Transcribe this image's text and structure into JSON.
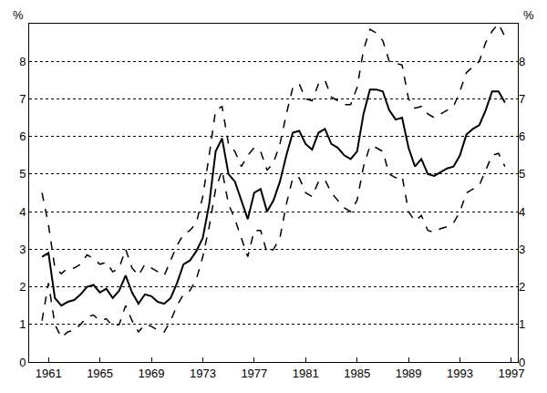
{
  "chart_data": {
    "type": "line",
    "ylabel": "%",
    "y2label": "%",
    "x": [
      1960.5,
      1961,
      1961.5,
      1962,
      1962.5,
      1963,
      1963.5,
      1964,
      1964.5,
      1965,
      1965.5,
      1966,
      1966.5,
      1967,
      1967.5,
      1968,
      1968.5,
      1969,
      1969.5,
      1970,
      1970.5,
      1971,
      1971.5,
      1972,
      1972.5,
      1973,
      1973.5,
      1974,
      1974.5,
      1975,
      1975.5,
      1976,
      1976.5,
      1977,
      1977.5,
      1978,
      1978.5,
      1979,
      1979.5,
      1980,
      1980.5,
      1981,
      1981.5,
      1982,
      1982.5,
      1983,
      1983.5,
      1984,
      1984.5,
      1985,
      1985.5,
      1986,
      1986.5,
      1987,
      1987.5,
      1988,
      1988.5,
      1989,
      1989.5,
      1990,
      1990.5,
      1991,
      1991.5,
      1992,
      1992.5,
      1993,
      1993.5,
      1994,
      1994.5,
      1995,
      1995.5,
      1996,
      1996.5
    ],
    "series": [
      {
        "color": "#000000",
        "line_style": "dash",
        "values": [
          4.5,
          3.65,
          2.5,
          2.35,
          2.5,
          2.5,
          2.6,
          2.85,
          2.75,
          2.6,
          2.65,
          2.4,
          2.5,
          3.0,
          2.5,
          2.3,
          2.6,
          2.5,
          2.4,
          2.3,
          2.7,
          3.1,
          3.4,
          3.5,
          3.7,
          4.4,
          5.5,
          6.7,
          6.8,
          5.8,
          5.6,
          5.2,
          5.5,
          5.7,
          5.6,
          5.1,
          5.3,
          5.8,
          6.6,
          7.3,
          7.4,
          7.0,
          6.95,
          7.4,
          7.5,
          7.05,
          6.95,
          6.85,
          6.85,
          7.3,
          8.3,
          8.85,
          8.75,
          8.55,
          8.0,
          7.95,
          7.9,
          7.0,
          6.75,
          6.8,
          6.6,
          6.5,
          6.6,
          6.7,
          6.8,
          7.2,
          7.7,
          7.85,
          8.0,
          8.5,
          8.8,
          9.0,
          8.65
        ]
      },
      {
        "color": "#000000",
        "line_style": "solid",
        "values": [
          2.8,
          2.9,
          1.7,
          1.5,
          1.6,
          1.65,
          1.8,
          2.0,
          2.05,
          1.85,
          1.95,
          1.7,
          1.9,
          2.3,
          1.85,
          1.55,
          1.8,
          1.75,
          1.6,
          1.55,
          1.7,
          2.1,
          2.6,
          2.7,
          2.95,
          3.3,
          4.2,
          5.6,
          5.95,
          5.0,
          4.8,
          4.3,
          3.8,
          4.5,
          4.6,
          4.0,
          4.3,
          4.8,
          5.5,
          6.1,
          6.15,
          5.8,
          5.65,
          6.1,
          6.2,
          5.8,
          5.7,
          5.5,
          5.4,
          5.6,
          6.6,
          7.25,
          7.25,
          7.2,
          6.7,
          6.45,
          6.5,
          5.7,
          5.2,
          5.4,
          5.0,
          4.95,
          5.05,
          5.15,
          5.2,
          5.5,
          6.05,
          6.2,
          6.3,
          6.7,
          7.2,
          7.2,
          6.9
        ]
      },
      {
        "color": "#000000",
        "line_style": "dash",
        "values": [
          1.1,
          2.1,
          1.0,
          0.65,
          0.8,
          0.85,
          1.0,
          1.2,
          1.25,
          1.1,
          1.15,
          0.95,
          1.0,
          1.5,
          1.1,
          0.8,
          1.0,
          0.95,
          0.85,
          0.8,
          1.1,
          1.5,
          1.8,
          1.9,
          2.2,
          2.8,
          3.6,
          4.6,
          5.1,
          4.2,
          3.8,
          3.3,
          2.8,
          3.5,
          3.5,
          2.9,
          3.0,
          3.3,
          4.2,
          4.9,
          4.9,
          4.5,
          4.4,
          4.8,
          4.85,
          4.5,
          4.3,
          4.1,
          4.0,
          4.3,
          5.2,
          5.75,
          5.7,
          5.6,
          5.0,
          4.9,
          4.95,
          4.0,
          3.75,
          3.9,
          3.5,
          3.45,
          3.55,
          3.6,
          3.7,
          4.0,
          4.5,
          4.6,
          4.7,
          5.1,
          5.5,
          5.55,
          5.2
        ]
      }
    ],
    "xlim": [
      1959.5,
      1997.5
    ],
    "xticks": [
      1961,
      1965,
      1969,
      1973,
      1977,
      1981,
      1985,
      1989,
      1993,
      1997
    ],
    "ylim": [
      0,
      9
    ],
    "yticks": [
      0,
      1,
      2,
      3,
      4,
      5,
      6,
      7,
      8
    ],
    "y2lim": [
      0,
      9
    ],
    "y2ticks": [
      0,
      1,
      2,
      3,
      4,
      5,
      6,
      7,
      8
    ],
    "grid": true
  }
}
